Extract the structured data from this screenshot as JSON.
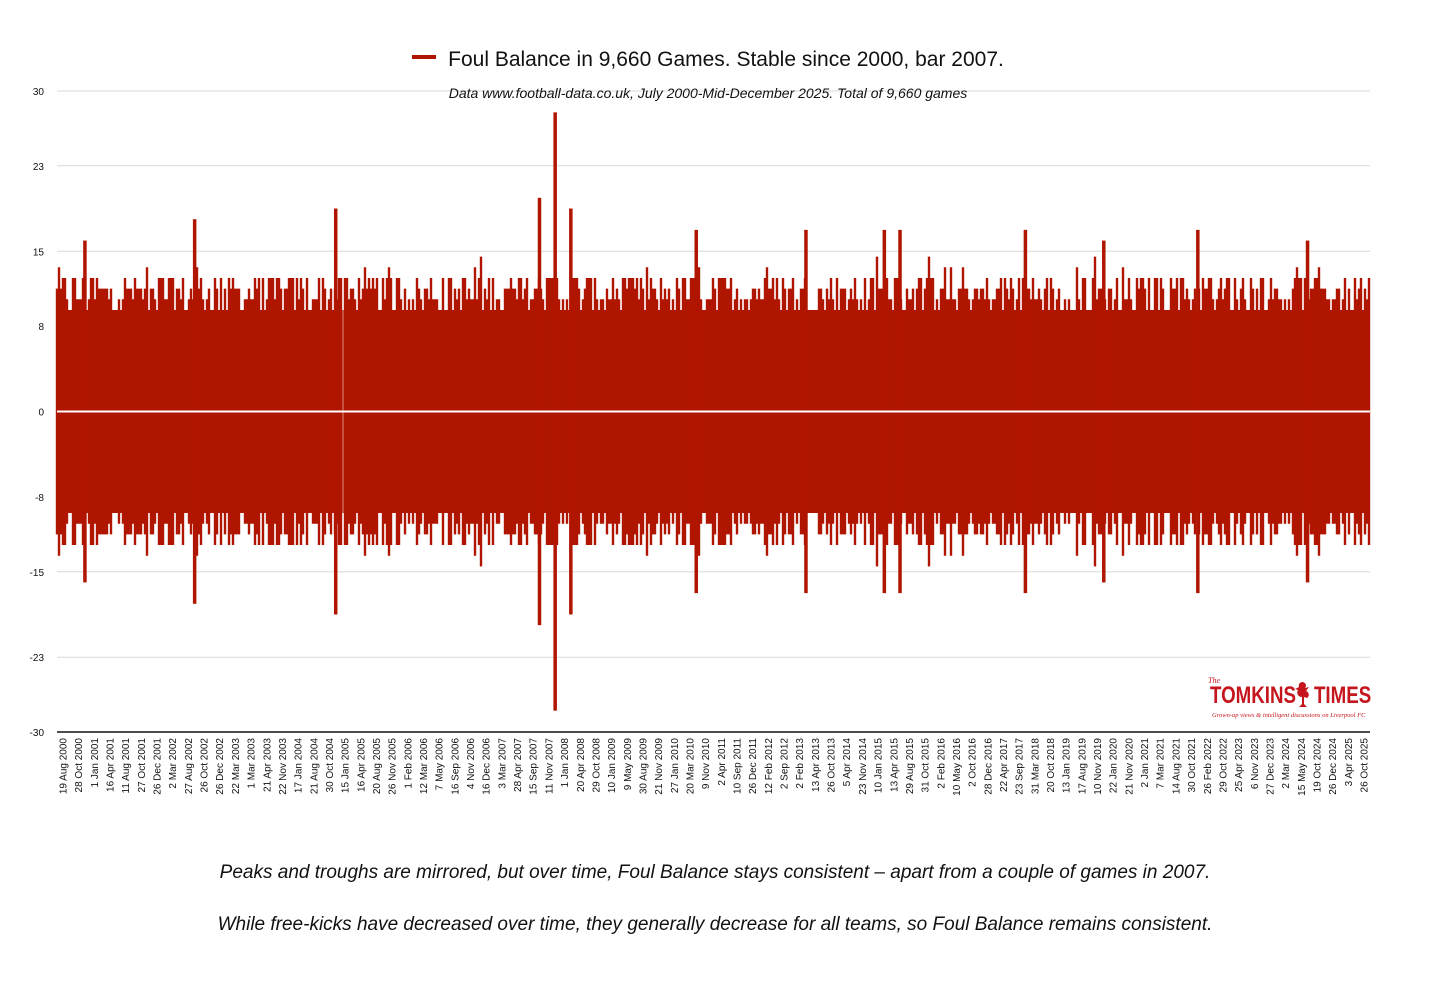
{
  "chart_data": {
    "type": "bar",
    "title": "Foul Balance in 9,660 Games. Stable since 2000, bar 2007.",
    "subtitle": "Data www.football-data.co.uk, July 2000-Mid-December 2025. Total of 9,660 games",
    "series": [
      {
        "name": "Foul Balance in 9,660 Games. Stable since 2000, bar 2007."
      }
    ],
    "ylim": [
      -30,
      30
    ],
    "yticks": [
      "30",
      "23",
      "15",
      "8",
      "0",
      "-8",
      "-15",
      "-23",
      "-30"
    ],
    "grid": true,
    "xlabel": "",
    "ylabel": "",
    "x_tick_labels": [
      "19 Aug 2000",
      "28 Oct 2000",
      "1 Jan 2001",
      "16 Apr 2001",
      "11 Aug 2001",
      "27 Oct 2001",
      "26 Dec 2001",
      "2 Mar 2002",
      "27 Aug 2002",
      "26 Oct 2002",
      "26 Dec 2002",
      "22 Mar 2003",
      "1 Mar 2003",
      "21 Apr 2003",
      "22 Nov 2003",
      "17 Jan 2004",
      "21 Aug 2004",
      "30 Oct 2004",
      "15 Jan 2005",
      "16 Apr 2005",
      "20 Aug 2005",
      "26 Nov 2005",
      "1 Feb 2006",
      "12 Mar 2006",
      "7 May 2006",
      "16 Sep 2006",
      "4 Nov 2006",
      "16 Dec 2006",
      "3 Mar 2007",
      "28 Apr 2007",
      "15 Sep 2007",
      "11 Nov 2007",
      "1 Jan 2008",
      "20 Apr 2008",
      "29 Oct 2008",
      "10 Jan 2009",
      "9 May 2009",
      "30 Aug 2009",
      "21 Nov 2009",
      "27 Jan 2010",
      "20 Mar 2010",
      "9 Nov 2010",
      "2 Apr 2011",
      "10 Sep 2011",
      "26 Dec 2011",
      "12 Feb 2012",
      "2 Sep 2012",
      "2 Feb 2013",
      "13 Apr 2013",
      "26 Oct 2013",
      "5 Apr 2014",
      "23 Nov 2014",
      "10 Jan 2015",
      "13 Apr 2015",
      "29 Aug 2015",
      "31 Oct 2015",
      "2 Feb 2016",
      "10 May 2016",
      "2 Oct 2016",
      "28 Dec 2016",
      "22 Apr 2017",
      "23 Sep 2017",
      "31 Mar 2018",
      "20 Oct 2018",
      "13 Jan 2019",
      "17 Aug 2019",
      "10 Nov 2019",
      "22 Jan 2020",
      "21 Nov 2020",
      "2 Jan 2021",
      "7 Mar 2021",
      "14 Aug 2021",
      "30 Oct 2021",
      "26 Feb 2022",
      "29 Oct 2022",
      "25 Apr 2023",
      "6 Nov 2023",
      "27 Dec 2023",
      "2 Mar 2024",
      "15 May 2024",
      "19 Oct 2024",
      "26 Dec 2024",
      "3 Apr 2025",
      "26 Oct 2025"
    ],
    "spike_peaks": [
      {
        "x": "28 Oct 2000",
        "y": 16
      },
      {
        "x": "27 Aug 2002",
        "y": 18
      },
      {
        "x": "30 Oct 2004",
        "y": 19
      },
      {
        "x": "15 Sep 2007",
        "y": 20
      },
      {
        "x": "11 Nov 2007",
        "y": 28
      },
      {
        "x": "1 Jan 2008",
        "y": 19
      },
      {
        "x": "20 Mar 2010",
        "y": 17
      },
      {
        "x": "2 Feb 2013",
        "y": 17
      },
      {
        "x": "10 Jan 2015",
        "y": 17
      },
      {
        "x": "13 Apr 2015",
        "y": 17
      },
      {
        "x": "23 Sep 2017",
        "y": 17
      },
      {
        "x": "10 Nov 2019",
        "y": 16
      },
      {
        "x": "30 Oct 2021",
        "y": 17
      },
      {
        "x": "15 May 2024",
        "y": 16
      }
    ],
    "spike_troughs": [
      {
        "x": "28 Oct 2000",
        "y": -16
      },
      {
        "x": "27 Aug 2002",
        "y": -18
      },
      {
        "x": "30 Oct 2004",
        "y": -19
      },
      {
        "x": "15 Sep 2007",
        "y": -20
      },
      {
        "x": "11 Nov 2007",
        "y": -28
      },
      {
        "x": "1 Jan 2008",
        "y": -19
      },
      {
        "x": "20 Mar 2010",
        "y": -17
      },
      {
        "x": "2 Feb 2013",
        "y": -17
      },
      {
        "x": "10 Jan 2015",
        "y": -17
      },
      {
        "x": "13 Apr 2015",
        "y": -17
      },
      {
        "x": "23 Sep 2017",
        "y": -17
      },
      {
        "x": "10 Nov 2019",
        "y": -16
      },
      {
        "x": "30 Oct 2021",
        "y": -17
      },
      {
        "x": "15 May 2024",
        "y": -16
      }
    ],
    "colors": {
      "bars": "#b01500",
      "zero_line": "#ffffff",
      "grid": "#d9d9d9"
    }
  },
  "captions": {
    "line1": "Peaks and troughs are mirrored, but over time, Foul Balance stays consistent – apart from a couple of games in 2007.",
    "line2": "While free-kicks have decreased over time, they generally decrease for all teams, so Foul Balance remains consistent."
  },
  "logo": {
    "the": "The",
    "word1": "TOMKINS",
    "word2": "TIMES",
    "tagline": "Grown-up views & intelligent discussions on Liverpool FC",
    "icon": "liverbird-icon"
  }
}
